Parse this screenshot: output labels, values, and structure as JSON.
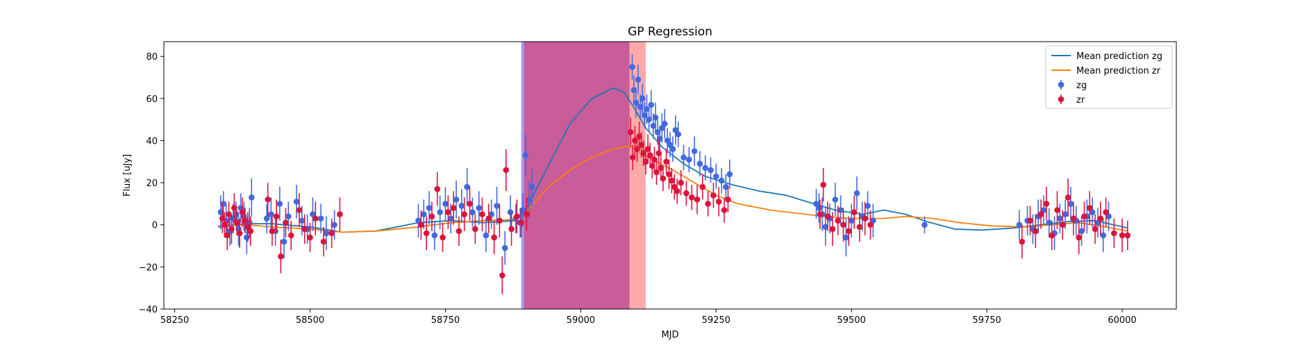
{
  "chart_data": {
    "type": "scatter",
    "title": "GP Regression",
    "xlabel": "MJD",
    "ylabel": "Flux [uJy]",
    "xlim": [
      58230,
      60100
    ],
    "ylim": [
      -40,
      87
    ],
    "xticks": [
      58250,
      58500,
      58750,
      59000,
      59250,
      59500,
      59750,
      60000
    ],
    "yticks": [
      -40,
      -20,
      0,
      20,
      40,
      60,
      80
    ],
    "grid": false,
    "legend_position": "top-right",
    "spans": [
      {
        "x0": 58890,
        "x1": 58895,
        "color": "#8080ff",
        "opacity": 0.75
      },
      {
        "x0": 58895,
        "x1": 59120,
        "color": "#ff5555",
        "opacity": 0.5
      },
      {
        "x0": 58895,
        "x1": 59090,
        "color": "#9a1d8a",
        "opacity": 0.55
      }
    ],
    "series": [
      {
        "name": "Mean prediction zg",
        "kind": "line",
        "color": "#1f77b4",
        "x": [
          58330,
          58380,
          58430,
          58500,
          58560,
          58620,
          58700,
          58760,
          58820,
          58880,
          58900,
          58940,
          58980,
          59020,
          59060,
          59080,
          59100,
          59120,
          59150,
          59190,
          59230,
          59280,
          59330,
          59380,
          59430,
          59470,
          59520,
          59560,
          59600,
          59640,
          59690,
          59740,
          59800,
          59850,
          59900,
          59950,
          60010
        ],
        "y": [
          -1,
          0.5,
          0.5,
          -1,
          -3.5,
          -3,
          1,
          2,
          1,
          2,
          8,
          28,
          48,
          60,
          65,
          63,
          55,
          46,
          37,
          29,
          23,
          19,
          16,
          14,
          10,
          7,
          5,
          7,
          5,
          1.5,
          -2,
          -2.5,
          -1.5,
          0,
          1.5,
          2,
          -1.5
        ]
      },
      {
        "name": "Mean prediction zr",
        "kind": "line",
        "color": "#ff7f0e",
        "x": [
          58330,
          58380,
          58430,
          58500,
          58560,
          58620,
          58700,
          58760,
          58820,
          58880,
          58900,
          58940,
          58980,
          59020,
          59060,
          59090,
          59110,
          59140,
          59170,
          59210,
          59250,
          59290,
          59350,
          59400,
          59450,
          59500,
          59560,
          59600,
          59650,
          59700,
          59760,
          59820,
          59870,
          59920,
          59970,
          60010
        ],
        "y": [
          -0.5,
          0,
          -1,
          -2,
          -3.5,
          -3,
          -1,
          1,
          2,
          2.5,
          6,
          18,
          26,
          32,
          36,
          37.5,
          34,
          30,
          26,
          20,
          14,
          10,
          7,
          5.5,
          4,
          3,
          3,
          4,
          3,
          1,
          -0.5,
          -1,
          0,
          1,
          -1,
          -3
        ]
      },
      {
        "name": "zg",
        "kind": "errorbar",
        "color": "#4169e1",
        "x": [
          58335,
          58340,
          58345,
          58352,
          58358,
          58363,
          58368,
          58372,
          58378,
          58383,
          58388,
          58392,
          58420,
          58428,
          58436,
          58444,
          58452,
          58460,
          58475,
          58485,
          58495,
          58505,
          58520,
          58530,
          58545,
          58700,
          58710,
          58720,
          58730,
          58740,
          58750,
          58760,
          58770,
          58780,
          58790,
          58800,
          58812,
          58825,
          58835,
          58845,
          58860,
          58870,
          58880,
          58888,
          58893,
          58898,
          58905,
          58910,
          59095,
          59098,
          59102,
          59106,
          59110,
          59114,
          59118,
          59122,
          59126,
          59130,
          59134,
          59138,
          59142,
          59146,
          59150,
          59155,
          59160,
          59165,
          59170,
          59175,
          59180,
          59190,
          59200,
          59210,
          59220,
          59230,
          59240,
          59250,
          59260,
          59268,
          59275,
          59435,
          59440,
          59446,
          59452,
          59460,
          59470,
          59480,
          59490,
          59500,
          59510,
          59520,
          59530,
          59540,
          59635,
          59810,
          59825,
          59835,
          59845,
          59855,
          59865,
          59875,
          59885,
          59895,
          59905,
          59915,
          59925,
          59935,
          59945,
          59955,
          59965,
          59975
        ],
        "y": [
          6,
          10,
          2,
          -3,
          3,
          5,
          -2,
          8,
          4,
          -6,
          1,
          13,
          3,
          5,
          -3,
          10,
          -8,
          4,
          11,
          2,
          -2,
          5,
          3,
          -4,
          0,
          2,
          5,
          8,
          -5,
          6,
          10,
          3,
          12,
          9,
          18,
          6,
          8,
          -5,
          5,
          9,
          -11,
          6,
          3,
          1,
          7,
          33,
          12,
          18,
          75,
          64,
          58,
          69,
          56,
          60,
          52,
          55,
          50,
          57,
          47,
          51,
          44,
          41,
          46,
          48,
          40,
          38,
          36,
          45,
          43,
          32,
          31,
          35,
          29,
          27,
          26,
          23,
          21,
          18,
          24,
          10,
          8,
          5,
          -1,
          3,
          12,
          7,
          -6,
          2,
          15,
          4,
          9,
          2,
          0,
          0,
          2,
          -2,
          4,
          7,
          1,
          -4,
          3,
          5,
          10,
          2,
          -3,
          4,
          6,
          1,
          -5,
          4
        ],
        "err": [
          8,
          6,
          8,
          7,
          7,
          6,
          8,
          7,
          7,
          8,
          7,
          9,
          7,
          8,
          7,
          8,
          8,
          7,
          8,
          7,
          7,
          8,
          7,
          8,
          7,
          8,
          7,
          8,
          7,
          8,
          8,
          7,
          9,
          8,
          9,
          7,
          8,
          8,
          7,
          9,
          8,
          8,
          7,
          7,
          8,
          10,
          9,
          9,
          6,
          7,
          7,
          7,
          6,
          7,
          6,
          7,
          6,
          7,
          6,
          7,
          6,
          6,
          7,
          7,
          6,
          6,
          6,
          7,
          6,
          6,
          6,
          7,
          6,
          6,
          6,
          6,
          6,
          6,
          7,
          7,
          7,
          8,
          9,
          7,
          8,
          7,
          9,
          8,
          8,
          7,
          7,
          8,
          4,
          7,
          7,
          7,
          8,
          7,
          7,
          8,
          7,
          7,
          8,
          7,
          7,
          8,
          7,
          7,
          8,
          7
        ]
      },
      {
        "name": "zr",
        "kind": "errorbar",
        "color": "#dc143c",
        "x": [
          58338,
          58342,
          58347,
          58350,
          58355,
          58360,
          58365,
          58370,
          58375,
          58380,
          58385,
          58390,
          58422,
          58430,
          58438,
          58446,
          58455,
          58465,
          58480,
          58490,
          58500,
          58510,
          58525,
          58540,
          58555,
          58705,
          58715,
          58725,
          58735,
          58745,
          58755,
          58765,
          58775,
          58785,
          58795,
          58805,
          58818,
          58830,
          58840,
          58850,
          58855,
          58862,
          58872,
          58882,
          58890,
          58900,
          59092,
          59096,
          59100,
          59104,
          59108,
          59112,
          59116,
          59120,
          59124,
          59128,
          59132,
          59136,
          59140,
          59144,
          59148,
          59152,
          59158,
          59163,
          59168,
          59173,
          59178,
          59185,
          59195,
          59205,
          59215,
          59225,
          59235,
          59245,
          59255,
          59265,
          59272,
          59442,
          59448,
          59456,
          59465,
          59475,
          59485,
          59495,
          59505,
          59515,
          59525,
          59535,
          59815,
          59830,
          59840,
          59850,
          59860,
          59870,
          59880,
          59890,
          59900,
          59910,
          59920,
          59930,
          59940,
          59950,
          59960,
          59970,
          59985,
          60000,
          60010
        ],
        "y": [
          3,
          0,
          -5,
          5,
          -2,
          8,
          1,
          -4,
          6,
          2,
          -1,
          -3,
          12,
          -3,
          4,
          -15,
          1,
          -5,
          7,
          -2,
          -6,
          3,
          -8,
          -4,
          5,
          0,
          -4,
          4,
          17,
          -6,
          6,
          8,
          -3,
          5,
          10,
          -2,
          5,
          3,
          -6,
          2,
          -24,
          26,
          -2,
          4,
          1,
          5,
          44,
          32,
          40,
          36,
          42,
          38,
          34,
          30,
          36,
          33,
          28,
          31,
          25,
          34,
          27,
          22,
          30,
          24,
          21,
          18,
          16,
          20,
          15,
          13,
          12,
          18,
          10,
          14,
          11,
          7,
          12,
          5,
          19,
          4,
          -2,
          2,
          0,
          -3,
          6,
          -1,
          3,
          0,
          -8,
          2,
          -3,
          5,
          10,
          -5,
          7,
          0,
          13,
          3,
          -6,
          4,
          8,
          -2,
          3,
          6,
          -4,
          -5,
          -5
        ],
        "err": [
          7,
          6,
          7,
          6,
          7,
          7,
          6,
          7,
          7,
          6,
          7,
          7,
          8,
          7,
          8,
          8,
          7,
          7,
          8,
          7,
          7,
          8,
          7,
          7,
          8,
          7,
          8,
          7,
          8,
          7,
          8,
          8,
          7,
          8,
          8,
          7,
          8,
          7,
          8,
          8,
          9,
          10,
          8,
          8,
          7,
          8,
          7,
          6,
          7,
          6,
          7,
          6,
          6,
          6,
          7,
          6,
          6,
          6,
          6,
          7,
          6,
          6,
          6,
          7,
          6,
          6,
          6,
          6,
          6,
          6,
          7,
          6,
          6,
          6,
          7,
          6,
          6,
          7,
          8,
          7,
          8,
          7,
          8,
          7,
          8,
          7,
          8,
          7,
          8,
          7,
          8,
          7,
          8,
          7,
          9,
          7,
          9,
          8,
          8,
          7,
          8,
          7,
          8,
          7,
          7,
          8,
          7
        ]
      }
    ]
  }
}
